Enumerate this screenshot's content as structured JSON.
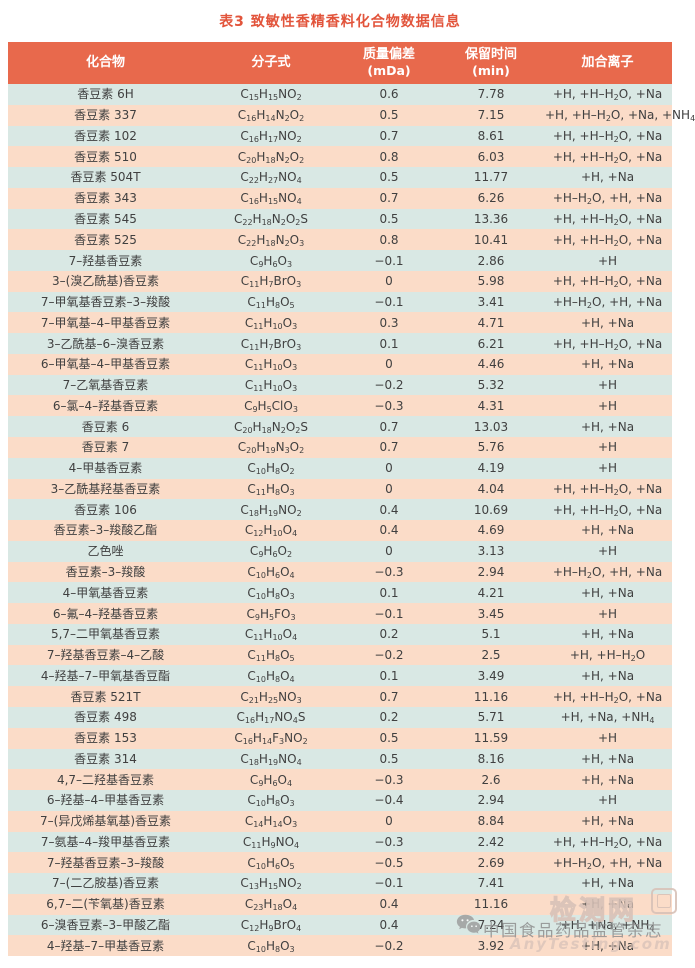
{
  "title": "表3  致敏性香精香料化合物数据信息",
  "table": {
    "headers": [
      {
        "label": "化合物",
        "sub": ""
      },
      {
        "label": "分子式",
        "sub": ""
      },
      {
        "label": "质量偏差",
        "sub": "(mDa)"
      },
      {
        "label": "保留时间",
        "sub": "(min)"
      },
      {
        "label": "加合离子",
        "sub": ""
      }
    ],
    "rows": [
      {
        "compound": "香豆素 6H",
        "formula": "C15H15NO2",
        "mass_dev": "0.6",
        "rt": "7.78",
        "adducts": "+H, +H–H2O, +Na"
      },
      {
        "compound": "香豆素 337",
        "formula": "C16H14N2O2",
        "mass_dev": "0.5",
        "rt": "7.15",
        "adducts": "+H, +H–H2O, +Na, +NH4"
      },
      {
        "compound": "香豆素 102",
        "formula": "C16H17NO2",
        "mass_dev": "0.7",
        "rt": "8.61",
        "adducts": "+H, +H–H2O, +Na"
      },
      {
        "compound": "香豆素 510",
        "formula": "C20H18N2O2",
        "mass_dev": "0.8",
        "rt": "6.03",
        "adducts": "+H, +H–H2O, +Na"
      },
      {
        "compound": "香豆素 504T",
        "formula": "C22H27NO4",
        "mass_dev": "0.5",
        "rt": "11.77",
        "adducts": "+H, +Na"
      },
      {
        "compound": "香豆素 343",
        "formula": "C16H15NO4",
        "mass_dev": "0.7",
        "rt": "6.26",
        "adducts": "+H–H2O, +H, +Na"
      },
      {
        "compound": "香豆素 545",
        "formula": "C22H18N2O2S",
        "mass_dev": "0.5",
        "rt": "13.36",
        "adducts": "+H, +H–H2O, +Na"
      },
      {
        "compound": "香豆素 525",
        "formula": "C22H18N2O3",
        "mass_dev": "0.8",
        "rt": "10.41",
        "adducts": "+H, +H–H2O, +Na"
      },
      {
        "compound": "7–羟基香豆素",
        "formula": "C9H6O3",
        "mass_dev": "−0.1",
        "rt": "2.86",
        "adducts": "+H"
      },
      {
        "compound": "3–(溴乙酰基)香豆素",
        "formula": "C11H7BrO3",
        "mass_dev": "0",
        "rt": "5.98",
        "adducts": "+H, +H–H2O, +Na"
      },
      {
        "compound": "7–甲氧基香豆素–3–羧酸",
        "formula": "C11H8O5",
        "mass_dev": "−0.1",
        "rt": "3.41",
        "adducts": "+H–H2O, +H, +Na"
      },
      {
        "compound": "7–甲氧基–4–甲基香豆素",
        "formula": "C11H10O3",
        "mass_dev": "0.3",
        "rt": "4.71",
        "adducts": "+H, +Na"
      },
      {
        "compound": "3–乙酰基–6–溴香豆素",
        "formula": "C11H7BrO3",
        "mass_dev": "0.1",
        "rt": "6.21",
        "adducts": "+H, +H–H2O, +Na"
      },
      {
        "compound": "6–甲氧基–4–甲基香豆素",
        "formula": "C11H10O3",
        "mass_dev": "0",
        "rt": "4.46",
        "adducts": "+H, +Na"
      },
      {
        "compound": "7–乙氧基香豆素",
        "formula": "C11H10O3",
        "mass_dev": "−0.2",
        "rt": "5.32",
        "adducts": "+H"
      },
      {
        "compound": "6–氯–4–羟基香豆素",
        "formula": "C9H5ClO3",
        "mass_dev": "−0.3",
        "rt": "4.31",
        "adducts": "+H"
      },
      {
        "compound": "香豆素 6",
        "formula": "C20H18N2O2S",
        "mass_dev": "0.7",
        "rt": "13.03",
        "adducts": "+H, +Na"
      },
      {
        "compound": "香豆素 7",
        "formula": "C20H19N3O2",
        "mass_dev": "0.7",
        "rt": "5.76",
        "adducts": "+H"
      },
      {
        "compound": "4–甲基香豆素",
        "formula": "C10H8O2",
        "mass_dev": "0",
        "rt": "4.19",
        "adducts": "+H"
      },
      {
        "compound": "3–乙酰基羟基香豆素",
        "formula": "C11H8O3",
        "mass_dev": "0",
        "rt": "4.04",
        "adducts": "+H, +H–H2O, +Na"
      },
      {
        "compound": "香豆素 106",
        "formula": "C18H19NO2",
        "mass_dev": "0.4",
        "rt": "10.69",
        "adducts": "+H, +H–H2O, +Na"
      },
      {
        "compound": "香豆素–3–羧酸乙酯",
        "formula": "C12H10O4",
        "mass_dev": "0.4",
        "rt": "4.69",
        "adducts": "+H, +Na"
      },
      {
        "compound": "乙色唑",
        "formula": "C9H6O2",
        "mass_dev": "0",
        "rt": "3.13",
        "adducts": "+H"
      },
      {
        "compound": "香豆素–3–羧酸",
        "formula": "C10H6O4",
        "mass_dev": "−0.3",
        "rt": "2.94",
        "adducts": "+H–H2O, +H, +Na"
      },
      {
        "compound": "4–甲氧基香豆素",
        "formula": "C10H8O3",
        "mass_dev": "0.1",
        "rt": "4.21",
        "adducts": "+H, +Na"
      },
      {
        "compound": "6–氟–4–羟基香豆素",
        "formula": "C9H5FO3",
        "mass_dev": "−0.1",
        "rt": "3.45",
        "adducts": "+H"
      },
      {
        "compound": "5,7–二甲氧基香豆素",
        "formula": "C11H10O4",
        "mass_dev": "0.2",
        "rt": "5.1",
        "adducts": "+H, +Na"
      },
      {
        "compound": "7–羟基香豆素–4–乙酸",
        "formula": "C11H8O5",
        "mass_dev": "−0.2",
        "rt": "2.5",
        "adducts": "+H, +H–H2O"
      },
      {
        "compound": "4–羟基–7–甲氧基香豆酯",
        "formula": "C10H8O4",
        "mass_dev": "0.1",
        "rt": "3.49",
        "adducts": "+H, +Na"
      },
      {
        "compound": "香豆素 521T",
        "formula": "C21H25NO3",
        "mass_dev": "0.7",
        "rt": "11.16",
        "adducts": "+H, +H–H2O, +Na"
      },
      {
        "compound": "香豆素 498",
        "formula": "C16H17NO4S",
        "mass_dev": "0.2",
        "rt": "5.71",
        "adducts": "+H, +Na, +NH4"
      },
      {
        "compound": "香豆素 153",
        "formula": "C16H14F3NO2",
        "mass_dev": "0.5",
        "rt": "11.59",
        "adducts": "+H"
      },
      {
        "compound": "香豆素 314",
        "formula": "C18H19NO4",
        "mass_dev": "0.5",
        "rt": "8.16",
        "adducts": "+H, +Na"
      },
      {
        "compound": "4,7–二羟基香豆素",
        "formula": "C9H6O4",
        "mass_dev": "−0.3",
        "rt": "2.6",
        "adducts": "+H, +Na"
      },
      {
        "compound": "6–羟基–4–甲基香豆素",
        "formula": "C10H8O3",
        "mass_dev": "−0.4",
        "rt": "2.94",
        "adducts": "+H"
      },
      {
        "compound": "7–(异戊烯基氧基)香豆素",
        "formula": "C14H14O3",
        "mass_dev": "0",
        "rt": "8.84",
        "adducts": "+H, +Na"
      },
      {
        "compound": "7–氨基–4–羧甲基香豆素",
        "formula": "C11H9NO4",
        "mass_dev": "−0.3",
        "rt": "2.42",
        "adducts": "+H, +H–H2O, +Na"
      },
      {
        "compound": "7–羟基香豆素–3–羧酸",
        "formula": "C10H6O5",
        "mass_dev": "−0.5",
        "rt": "2.69",
        "adducts": "+H–H2O, +H, +Na"
      },
      {
        "compound": "7–(二乙胺基)香豆素",
        "formula": "C13H15NO2",
        "mass_dev": "−0.1",
        "rt": "7.41",
        "adducts": "+H, +Na"
      },
      {
        "compound": "6,7–二(苄氧基)香豆素",
        "formula": "C23H18O4",
        "mass_dev": "0.4",
        "rt": "11.16",
        "adducts": "+H, +Na"
      },
      {
        "compound": "6–溴香豆素–3–甲酸乙酯",
        "formula": "C12H9BrO4",
        "mass_dev": "0.4",
        "rt": "7.24",
        "adducts": "+H, +Na, +NH4"
      },
      {
        "compound": "4–羟基–7–甲基香豆素",
        "formula": "C10H8O3",
        "mass_dev": "−0.2",
        "rt": "3.92",
        "adducts": "+H, +Na"
      }
    ]
  },
  "watermark": {
    "journal_label": "中国食品药品监管杂志",
    "overlay_text": "检测网",
    "site_text": "AnyTesting.com"
  },
  "colors": {
    "header_bg": "#e8694c",
    "row_odd": "#d9e8e4",
    "row_even": "#fbdcc8",
    "title_color": "#e2543b",
    "text_color": "#404040"
  }
}
